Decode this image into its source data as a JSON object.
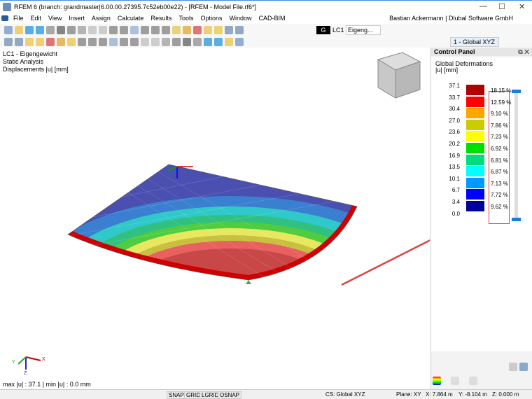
{
  "window": {
    "title": "RFEM 6 (branch: grandmaster|6.00.00.27395.7c52eb00e22) - [RFEM - Model File.rf6*]",
    "user": "Bastian Ackermann | Dlubal Software GmbH"
  },
  "menu": [
    "File",
    "Edit",
    "View",
    "Insert",
    "Assign",
    "Calculate",
    "Results",
    "Tools",
    "Options",
    "Window",
    "CAD-BIM"
  ],
  "toolbar": {
    "load_case_code": "G",
    "load_case": "LC1",
    "load_case_name": "Eigeng...",
    "coord_system": "1 - Global XYZ"
  },
  "view": {
    "info": [
      "LC1 - Eigengewicht",
      "Static Analysis",
      "Displacements |u| [mm]"
    ],
    "footer": "max |u| : 37.1 | min |u| : 0.0 mm",
    "axes": {
      "x": "X",
      "y": "Y",
      "z": "Z"
    }
  },
  "control_panel": {
    "title": "Control Panel",
    "heading": "Global Deformations",
    "unit": "|u| [mm]",
    "labels": [
      "37.1",
      "33.7",
      "30.4",
      "27.0",
      "23.6",
      "20.2",
      "16.9",
      "13.5",
      "10.1",
      "6.7",
      "3.4",
      "0.0"
    ],
    "colors": [
      "#b00000",
      "#ff0000",
      "#ffa500",
      "#cccc00",
      "#ffff00",
      "#00e000",
      "#00dd80",
      "#00ffff",
      "#0099ff",
      "#0000ff",
      "#000099"
    ],
    "percentages": [
      "18.15 %",
      "12.59 %",
      "9.10 %",
      "7.86 %",
      "7.23 %",
      "6.92 %",
      "6.81 %",
      "6.87 %",
      "7.13 %",
      "7.72 %",
      "9.62 %"
    ]
  },
  "status": {
    "snap": "SNAP",
    "grid": "GRID",
    "lgrid": "LGRID",
    "osnap": "OSNAP",
    "cs": "CS: Global XYZ",
    "plane": "Plane: XY",
    "x": "X: 7.864 m",
    "y": "Y: -8.104 m",
    "z": "Z: 0.000 m"
  }
}
